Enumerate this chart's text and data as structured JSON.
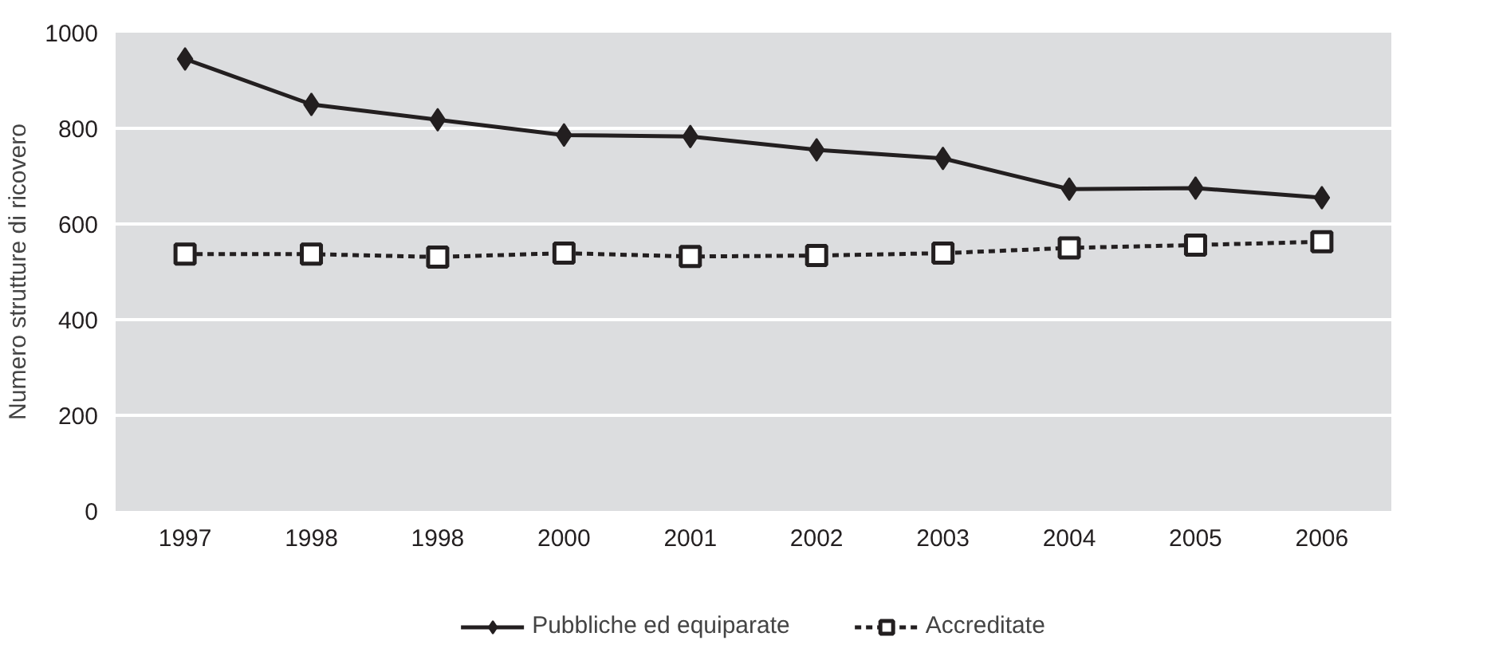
{
  "chart_data": {
    "type": "line",
    "ylabel": "Numero strutture di ricovero",
    "categories": [
      "1997",
      "1998",
      "1998",
      "2000",
      "2001",
      "2002",
      "2003",
      "2004",
      "2005",
      "2006"
    ],
    "series": [
      {
        "name": "Pubbliche ed equiparate",
        "color": "#231f20",
        "marker": "diamond",
        "line_style": "solid",
        "values": [
          945,
          850,
          818,
          786,
          783,
          755,
          737,
          673,
          675,
          655
        ]
      },
      {
        "name": "Accreditate",
        "color": "#231f20",
        "marker": "square",
        "line_style": "dashed",
        "values": [
          537,
          537,
          531,
          539,
          532,
          534,
          539,
          550,
          556,
          563
        ]
      }
    ],
    "ylim": [
      0,
      1000
    ],
    "yticks": [
      0,
      200,
      400,
      600,
      800,
      1000
    ],
    "grid": "y",
    "legend": "bottom"
  }
}
